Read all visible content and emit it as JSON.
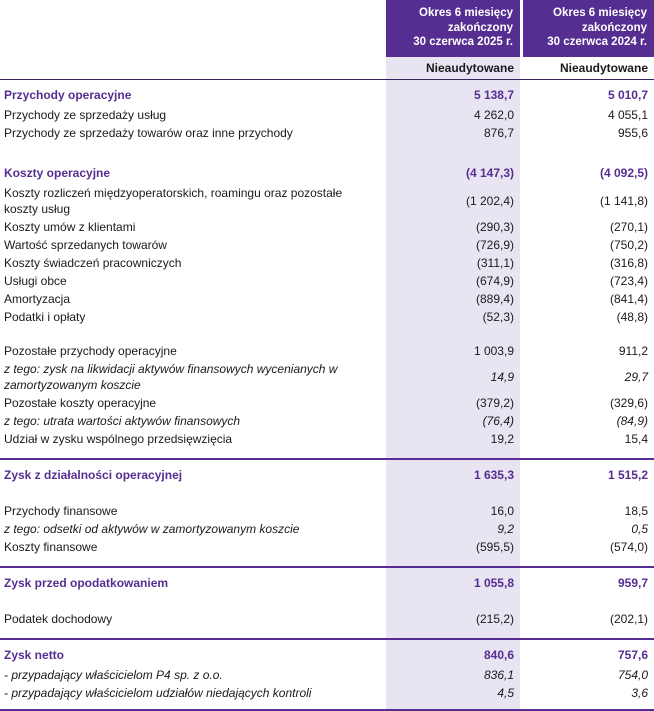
{
  "colors": {
    "header_background": "#562e91",
    "highlight_column_background": "#e8e4f2",
    "accent_text": "#562e91",
    "thin_rule": "#39215e"
  },
  "header": {
    "columns": [
      {
        "period_lines": [
          "Okres 6 miesięcy",
          "zakończony",
          "30 czerwca 2025 r."
        ],
        "audit_note": "Nieaudytowane"
      },
      {
        "period_lines": [
          "Okres 6 miesięcy",
          "zakończony",
          "30 czerwca 2024 r."
        ],
        "audit_note": "Nieaudytowane"
      }
    ]
  },
  "table": {
    "rows": [
      {
        "type": "section",
        "label": "Przychody operacyjne",
        "val_2025": "5 138,7",
        "val_2024": "5 010,7"
      },
      {
        "type": "normal",
        "label": "Przychody ze sprzedaży usług",
        "val_2025": "4 262,0",
        "val_2024": "4 055,1"
      },
      {
        "type": "normal",
        "label": "Przychody ze sprzedaży towarów oraz inne przychody",
        "val_2025": "876,7",
        "val_2024": "955,6"
      },
      {
        "type": "spacer"
      },
      {
        "type": "section",
        "label": "Koszty operacyjne",
        "val_2025": "(4 147,3)",
        "val_2024": "(4 092,5)"
      },
      {
        "type": "normal",
        "label": "Koszty rozliczeń międzyoperatorskich, roamingu oraz pozostałe koszty usług",
        "val_2025": "(1 202,4)",
        "val_2024": "(1 141,8)"
      },
      {
        "type": "normal",
        "label": "Koszty umów z klientami",
        "val_2025": "(290,3)",
        "val_2024": "(270,1)"
      },
      {
        "type": "normal",
        "label": "Wartość sprzedanych towarów",
        "val_2025": "(726,9)",
        "val_2024": "(750,2)"
      },
      {
        "type": "normal",
        "label": "Koszty świadczeń pracowniczych",
        "val_2025": "(311,1)",
        "val_2024": "(316,8)"
      },
      {
        "type": "normal",
        "label": "Usługi obce",
        "val_2025": "(674,9)",
        "val_2024": "(723,4)"
      },
      {
        "type": "normal",
        "label": "Amortyzacja",
        "val_2025": "(889,4)",
        "val_2024": "(841,4)"
      },
      {
        "type": "normal",
        "label": "Podatki i opłaty",
        "val_2025": "(52,3)",
        "val_2024": "(48,8)"
      },
      {
        "type": "spacer"
      },
      {
        "type": "normal",
        "label": "Pozostałe przychody operacyjne",
        "val_2025": "1 003,9",
        "val_2024": "911,2"
      },
      {
        "type": "italic",
        "label": "z tego: zysk na likwidacji aktywów finansowych wycenianych w zamortyzowanym koszcie",
        "val_2025": "14,9",
        "val_2024": "29,7"
      },
      {
        "type": "normal",
        "label": "Pozostałe koszty operacyjne",
        "val_2025": "(379,2)",
        "val_2024": "(329,6)"
      },
      {
        "type": "italic",
        "label": "z tego: utrata wartości aktywów finansowych",
        "val_2025": "(76,4)",
        "val_2024": "(84,9)"
      },
      {
        "type": "normal",
        "label": "Udział w zysku wspólnego przedsięwzięcia",
        "val_2025": "19,2",
        "val_2024": "15,4"
      },
      {
        "type": "rule"
      },
      {
        "type": "section",
        "label": "Zysk z działalności operacyjnej",
        "val_2025": "1 635,3",
        "val_2024": "1 515,2"
      },
      {
        "type": "spacer"
      },
      {
        "type": "normal",
        "label": "Przychody finansowe",
        "val_2025": "16,0",
        "val_2024": "18,5"
      },
      {
        "type": "italic",
        "label": "z tego: odsetki od aktywów w zamortyzowanym koszcie",
        "val_2025": "9,2",
        "val_2024": "0,5"
      },
      {
        "type": "normal",
        "label": "Koszty finansowe",
        "val_2025": "(595,5)",
        "val_2024": "(574,0)"
      },
      {
        "type": "rule"
      },
      {
        "type": "section",
        "label": "Zysk przed opodatkowaniem",
        "val_2025": "1 055,8",
        "val_2024": "959,7"
      },
      {
        "type": "spacer"
      },
      {
        "type": "normal",
        "label": "Podatek dochodowy",
        "val_2025": "(215,2)",
        "val_2024": "(202,1)"
      },
      {
        "type": "rule"
      },
      {
        "type": "section",
        "label": "Zysk netto",
        "val_2025": "840,6",
        "val_2024": "757,6"
      },
      {
        "type": "italic",
        "label": "- przypadający właścicielom P4 sp. z o.o.",
        "val_2025": "836,1",
        "val_2024": "754,0"
      },
      {
        "type": "italic",
        "label": "- przypadający właścicielom udziałów niedających kontroli",
        "val_2025": "4,5",
        "val_2024": "3,6"
      },
      {
        "type": "rule",
        "last": true
      }
    ]
  }
}
